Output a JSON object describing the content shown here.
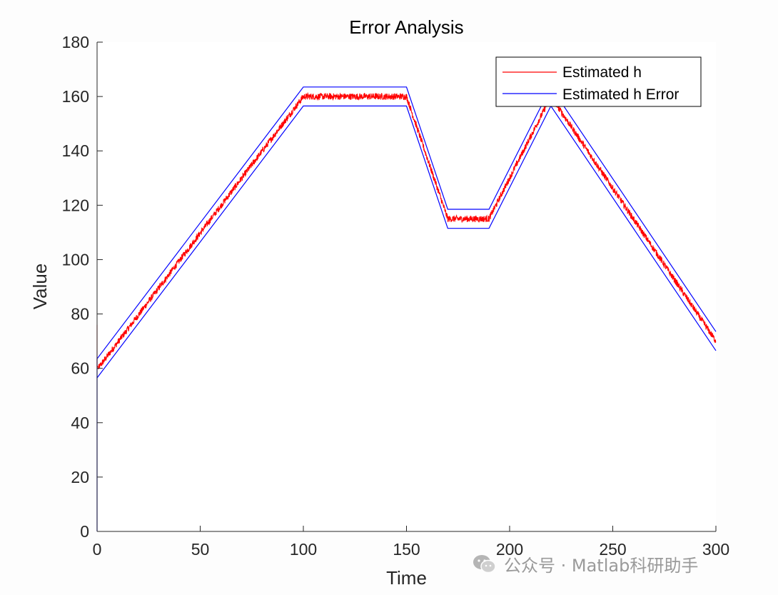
{
  "chart_data": {
    "type": "line",
    "title": "Error Analysis",
    "xlabel": "Time",
    "ylabel": "Value",
    "xlim": [
      0,
      300
    ],
    "ylim": [
      0,
      180
    ],
    "xticks": [
      0,
      50,
      100,
      150,
      200,
      250,
      300
    ],
    "yticks": [
      0,
      20,
      40,
      60,
      80,
      100,
      120,
      140,
      160,
      180
    ],
    "grid": false,
    "legend_position": "top-right",
    "series": [
      {
        "name": "Estimated h",
        "color": "#ff0000",
        "noise": 1.2,
        "x": [
          0,
          0,
          0.5,
          100,
          150,
          170,
          190,
          220,
          300
        ],
        "y": [
          76,
          61,
          60,
          160,
          160,
          115,
          115,
          160,
          70
        ]
      },
      {
        "name": "Estimated h Error",
        "color": "#0000ff",
        "bands": [
          {
            "x": [
              0,
              0,
              100,
              150,
              170,
              190,
              220,
              300
            ],
            "y": [
              0,
              63.5,
              163.5,
              163.5,
              118.5,
              118.5,
              163.5,
              73.5
            ]
          },
          {
            "x": [
              0,
              100,
              150,
              170,
              190,
              220,
              300
            ],
            "y": [
              56.5,
              156.5,
              156.5,
              111.5,
              111.5,
              156.5,
              66.5
            ]
          }
        ]
      }
    ]
  },
  "watermark": {
    "text": "公众号 · Matlab科研助手",
    "icon": "wechat-icon"
  }
}
